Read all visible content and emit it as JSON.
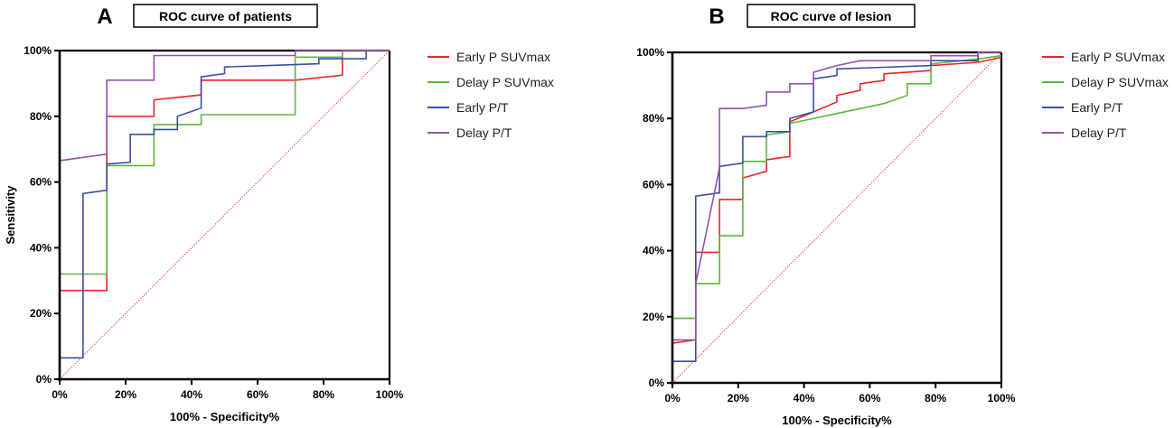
{
  "chart_data": [
    {
      "type": "line",
      "panel_letter": "A",
      "title": "ROC  curve of patients",
      "xlabel": "100% - Specificity%",
      "ylabel": "Sensitivity",
      "xlim": [
        0,
        100
      ],
      "ylim": [
        0,
        100
      ],
      "x_ticks": [
        "0%",
        "20%",
        "40%",
        "60%",
        "80%",
        "100%"
      ],
      "y_ticks": [
        "0%",
        "20%",
        "40%",
        "60%",
        "80%",
        "100%"
      ],
      "legend_position": "right",
      "reference_line": {
        "color": "#e8474a",
        "style": "dotted",
        "from": [
          0,
          0
        ],
        "to": [
          100,
          100
        ]
      },
      "series": [
        {
          "name": "Early P SUVmax",
          "color": "#e8252a",
          "points": [
            [
              0,
              0
            ],
            [
              0,
              27
            ],
            [
              14.3,
              27
            ],
            [
              14.3,
              80
            ],
            [
              28.6,
              80
            ],
            [
              28.6,
              85
            ],
            [
              42.9,
              86.5
            ],
            [
              42.9,
              91
            ],
            [
              71.4,
              91
            ],
            [
              85.7,
              92.5
            ],
            [
              85.7,
              100
            ],
            [
              100,
              100
            ]
          ]
        },
        {
          "name": "Delay P SUVmax",
          "color": "#5cb83a",
          "points": [
            [
              0,
              0
            ],
            [
              0,
              32
            ],
            [
              14.3,
              32
            ],
            [
              14.3,
              65
            ],
            [
              28.6,
              65
            ],
            [
              28.6,
              77.5
            ],
            [
              42.9,
              77.5
            ],
            [
              42.9,
              80.5
            ],
            [
              71.4,
              80.5
            ],
            [
              71.4,
              98
            ],
            [
              85.7,
              98
            ],
            [
              85.7,
              100
            ],
            [
              100,
              100
            ]
          ]
        },
        {
          "name": "Early P/T",
          "color": "#3a4fa3",
          "points": [
            [
              0,
              0
            ],
            [
              0,
              6.5
            ],
            [
              7.1,
              6.5
            ],
            [
              7.1,
              56.5
            ],
            [
              14.3,
              57.5
            ],
            [
              14.3,
              65.5
            ],
            [
              21.4,
              66
            ],
            [
              21.4,
              74.5
            ],
            [
              28.6,
              74.5
            ],
            [
              28.6,
              76
            ],
            [
              35.7,
              76
            ],
            [
              35.7,
              80
            ],
            [
              42.9,
              82.5
            ],
            [
              42.9,
              92
            ],
            [
              50,
              93
            ],
            [
              50,
              95
            ],
            [
              64.3,
              95.5
            ],
            [
              78.6,
              96
            ],
            [
              78.6,
              97.5
            ],
            [
              92.9,
              97.5
            ],
            [
              92.9,
              100
            ],
            [
              100,
              100
            ]
          ]
        },
        {
          "name": "Delay P/T",
          "color": "#9650a8",
          "points": [
            [
              0,
              0
            ],
            [
              0,
              66.5
            ],
            [
              14.3,
              68.5
            ],
            [
              14.3,
              91
            ],
            [
              28.6,
              91
            ],
            [
              28.6,
              98.5
            ],
            [
              71.4,
              98.5
            ],
            [
              71.4,
              100
            ],
            [
              100,
              100
            ]
          ]
        }
      ]
    },
    {
      "type": "line",
      "panel_letter": "B",
      "title": "ROC  curve of lesion",
      "xlabel": "100% - Specificity%",
      "ylabel": "",
      "xlim": [
        0,
        100
      ],
      "ylim": [
        0,
        100
      ],
      "x_ticks": [
        "0%",
        "20%",
        "40%",
        "60%",
        "80%",
        "100%"
      ],
      "y_ticks": [
        "0%",
        "20%",
        "40%",
        "60%",
        "80%",
        "100%"
      ],
      "legend_position": "right",
      "reference_line": {
        "color": "#e8474a",
        "style": "dotted",
        "from": [
          0,
          0
        ],
        "to": [
          100,
          100
        ]
      },
      "series": [
        {
          "name": "Early P SUVmax",
          "color": "#e8252a",
          "points": [
            [
              0,
              0
            ],
            [
              0,
              12
            ],
            [
              7.1,
              13
            ],
            [
              7.1,
              39.5
            ],
            [
              14.3,
              39.5
            ],
            [
              14.3,
              55.5
            ],
            [
              21.4,
              55.5
            ],
            [
              21.4,
              62
            ],
            [
              28.6,
              64
            ],
            [
              28.6,
              67.5
            ],
            [
              35.7,
              68.5
            ],
            [
              35.7,
              79
            ],
            [
              42.9,
              82
            ],
            [
              50,
              85
            ],
            [
              50,
              87
            ],
            [
              57.1,
              88.5
            ],
            [
              57.1,
              90.5
            ],
            [
              64.3,
              91.5
            ],
            [
              64.3,
              93.5
            ],
            [
              78.6,
              94.5
            ],
            [
              78.6,
              96
            ],
            [
              92.9,
              97
            ],
            [
              100,
              98.5
            ]
          ]
        },
        {
          "name": "Delay P SUVmax",
          "color": "#5cb83a",
          "points": [
            [
              0,
              0
            ],
            [
              0,
              19.5
            ],
            [
              7.1,
              19.5
            ],
            [
              7.1,
              30
            ],
            [
              14.3,
              30
            ],
            [
              14.3,
              44.5
            ],
            [
              21.4,
              44.5
            ],
            [
              21.4,
              67
            ],
            [
              28.6,
              67
            ],
            [
              28.6,
              75
            ],
            [
              35.7,
              76
            ],
            [
              35.7,
              78.5
            ],
            [
              50,
              81.5
            ],
            [
              64.3,
              84.5
            ],
            [
              71.4,
              87
            ],
            [
              71.4,
              90.5
            ],
            [
              78.6,
              90.5
            ],
            [
              78.6,
              96.5
            ],
            [
              92.9,
              98
            ],
            [
              100,
              99
            ]
          ]
        },
        {
          "name": "Early P/T",
          "color": "#3a4fa3",
          "points": [
            [
              0,
              0
            ],
            [
              0,
              6.5
            ],
            [
              7.1,
              6.5
            ],
            [
              7.1,
              56.5
            ],
            [
              14.3,
              57.5
            ],
            [
              14.3,
              65.5
            ],
            [
              21.4,
              66.5
            ],
            [
              21.4,
              74.5
            ],
            [
              28.6,
              74.5
            ],
            [
              28.6,
              76
            ],
            [
              35.7,
              76
            ],
            [
              35.7,
              80
            ],
            [
              42.9,
              82
            ],
            [
              42.9,
              92
            ],
            [
              50,
              93
            ],
            [
              50,
              95
            ],
            [
              64.3,
              95.5
            ],
            [
              78.6,
              96
            ],
            [
              78.6,
              97.5
            ],
            [
              92.9,
              97.5
            ],
            [
              92.9,
              100
            ],
            [
              100,
              100
            ]
          ]
        },
        {
          "name": "Delay P/T",
          "color": "#9650a8",
          "points": [
            [
              0,
              0
            ],
            [
              0,
              13
            ],
            [
              7.1,
              13
            ],
            [
              7.1,
              30
            ],
            [
              14.3,
              65
            ],
            [
              14.3,
              83
            ],
            [
              21.4,
              83
            ],
            [
              28.6,
              84
            ],
            [
              28.6,
              88
            ],
            [
              35.7,
              88
            ],
            [
              35.7,
              90.5
            ],
            [
              42.9,
              90.5
            ],
            [
              42.9,
              94
            ],
            [
              50,
              96
            ],
            [
              57.1,
              97.5
            ],
            [
              78.6,
              97.5
            ],
            [
              78.6,
              99
            ],
            [
              92.9,
              99
            ],
            [
              92.9,
              100
            ],
            [
              100,
              100
            ]
          ]
        }
      ]
    }
  ]
}
